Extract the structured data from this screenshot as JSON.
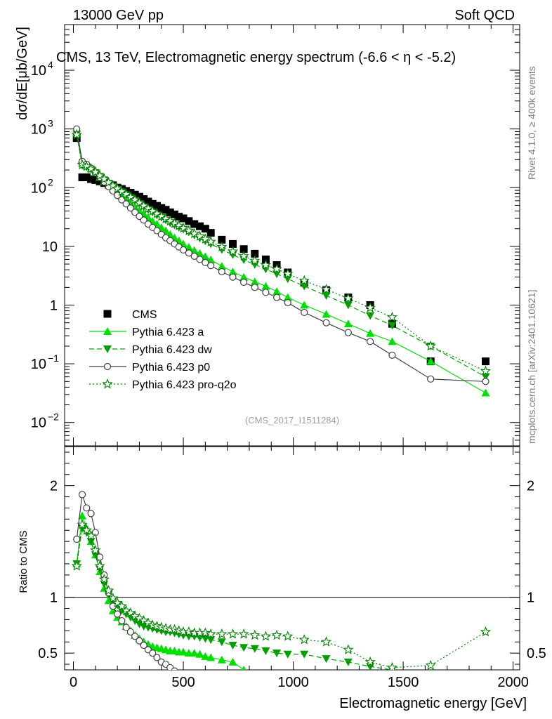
{
  "header": {
    "left": "13000 GeV pp",
    "right": "Soft QCD"
  },
  "side": {
    "rivet": "Rivet 4.1.0, ≥ 400k events",
    "mcplots": "mcplots.cern.ch [arXiv:2401.10621]"
  },
  "chart_data": [
    {
      "type": "scatter",
      "panel": "main",
      "title": "CMS, 13 TeV, Electromagnetic energy spectrum (-6.6 < η < -5.2)",
      "ylabel": "dσ/dE[μb/GeV]",
      "yscale": "log",
      "ylim": [
        0.004,
        60000
      ],
      "xlim": [
        -40,
        2030
      ],
      "watermark": "(CMS_2017_I1511284)",
      "yticks": [
        {
          "value": 0.01,
          "base": "10",
          "exp": "−2"
        },
        {
          "value": 0.1,
          "base": "10",
          "exp": "−1"
        },
        {
          "value": 1,
          "base": "1",
          "exp": ""
        },
        {
          "value": 10,
          "base": "10",
          "exp": ""
        },
        {
          "value": 100,
          "base": "10",
          "exp": "2"
        },
        {
          "value": 1000,
          "base": "10",
          "exp": "3"
        },
        {
          "value": 10000,
          "base": "10",
          "exp": "4"
        }
      ],
      "series": [
        {
          "name": "CMS",
          "color": "#000000",
          "marker": "square",
          "line": "none",
          "x": [
            15,
            40,
            60,
            80,
            100,
            120,
            140,
            160,
            180,
            200,
            220,
            240,
            260,
            280,
            300,
            320,
            340,
            360,
            380,
            400,
            420,
            440,
            460,
            480,
            500,
            525,
            550,
            575,
            600,
            625,
            675,
            725,
            775,
            825,
            875,
            925,
            975,
            1050,
            1150,
            1250,
            1350,
            1450,
            1625,
            1875
          ],
          "y": [
            700,
            150,
            150,
            140,
            135,
            128,
            120,
            115,
            110,
            100,
            95,
            88,
            82,
            76,
            70,
            64,
            58,
            53,
            49,
            45,
            42,
            38,
            35,
            32,
            30,
            27,
            24,
            22,
            20,
            17,
            13,
            11,
            9,
            7.5,
            6,
            4.8,
            3.6,
            2.4,
            1.8,
            1.35,
            1.0,
            0.48,
            0.11,
            0.11
          ]
        },
        {
          "name": "Pythia 6.423 a",
          "color": "#00e000",
          "marker": "triangle-up",
          "line": "solid",
          "x": [
            15,
            40,
            60,
            80,
            100,
            120,
            140,
            160,
            180,
            200,
            220,
            240,
            260,
            280,
            300,
            320,
            340,
            360,
            380,
            400,
            420,
            440,
            460,
            480,
            500,
            525,
            550,
            575,
            600,
            625,
            675,
            725,
            775,
            825,
            875,
            925,
            975,
            1050,
            1150,
            1250,
            1350,
            1450,
            1625,
            1875
          ],
          "y": [
            850,
            260,
            235,
            210,
            180,
            150,
            128,
            110,
            95,
            82,
            72,
            63,
            55,
            47,
            41,
            36,
            31,
            27,
            24,
            21,
            18.5,
            16,
            14,
            12.5,
            11,
            9.7,
            8.5,
            7.6,
            6.7,
            5.9,
            4.6,
            3.7,
            3.0,
            2.5,
            2.1,
            1.7,
            1.35,
            1.0,
            0.7,
            0.48,
            0.33,
            0.24,
            0.11,
            0.032
          ]
        },
        {
          "name": "Pythia 6.423 dw",
          "color": "#00a000",
          "marker": "triangle-down",
          "line": "dashed",
          "x": [
            15,
            40,
            60,
            80,
            100,
            120,
            140,
            160,
            180,
            200,
            220,
            240,
            260,
            280,
            300,
            320,
            340,
            360,
            380,
            400,
            420,
            440,
            460,
            480,
            500,
            525,
            550,
            575,
            600,
            625,
            675,
            725,
            775,
            825,
            875,
            925,
            975,
            1050,
            1150,
            1250,
            1350,
            1450,
            1625,
            1875
          ],
          "y": [
            820,
            240,
            225,
            205,
            180,
            155,
            135,
            118,
            104,
            93,
            84,
            75,
            67,
            60,
            53,
            47,
            42,
            38,
            34,
            31,
            28,
            25,
            23,
            21,
            19.5,
            17.5,
            15.5,
            13.8,
            12.3,
            11.0,
            8.8,
            7.2,
            5.9,
            4.9,
            4.1,
            3.4,
            2.8,
            2.1,
            1.45,
            1.0,
            0.66,
            0.45,
            0.2,
            0.06
          ]
        },
        {
          "name": "Pythia 6.423 p0",
          "color": "#404040",
          "marker": "circle-open",
          "line": "solid",
          "x": [
            15,
            40,
            60,
            80,
            100,
            120,
            140,
            160,
            180,
            200,
            220,
            240,
            260,
            280,
            300,
            320,
            340,
            360,
            380,
            400,
            420,
            440,
            460,
            480,
            500,
            525,
            550,
            575,
            600,
            625,
            675,
            725,
            775,
            825,
            875,
            925,
            975,
            1050,
            1150,
            1250,
            1350,
            1450,
            1625,
            1875
          ],
          "y": [
            1000,
            280,
            250,
            215,
            180,
            150,
            125,
            104,
            88,
            74,
            62,
            53,
            45,
            38,
            32.5,
            28,
            24,
            21,
            18.5,
            16,
            14,
            12.5,
            11,
            9.8,
            8.7,
            7.7,
            6.8,
            6.0,
            5.3,
            4.7,
            3.7,
            3.0,
            2.45,
            2.0,
            1.65,
            1.35,
            1.1,
            0.75,
            0.5,
            0.34,
            0.24,
            0.14,
            0.055,
            0.05
          ]
        },
        {
          "name": "Pythia 6.423 pro-q2o",
          "color": "#008000",
          "marker": "star-open",
          "line": "dotted",
          "x": [
            15,
            40,
            60,
            80,
            100,
            120,
            140,
            160,
            180,
            200,
            220,
            240,
            260,
            280,
            300,
            320,
            340,
            360,
            380,
            400,
            420,
            440,
            460,
            480,
            500,
            525,
            550,
            575,
            600,
            625,
            675,
            725,
            775,
            825,
            875,
            925,
            975,
            1050,
            1150,
            1250,
            1350,
            1450,
            1625,
            1875
          ],
          "y": [
            800,
            245,
            230,
            210,
            185,
            160,
            140,
            122,
            108,
            96,
            86,
            77,
            69,
            62,
            55,
            49,
            44,
            40,
            36,
            32.5,
            29.5,
            27,
            24.5,
            22.5,
            20.5,
            18.5,
            16.5,
            14.8,
            13.3,
            12.0,
            9.8,
            8.2,
            6.8,
            5.7,
            4.8,
            4.1,
            3.4,
            2.6,
            1.85,
            1.3,
            0.9,
            0.62,
            0.2,
            0.075
          ]
        }
      ]
    },
    {
      "type": "line",
      "panel": "ratio",
      "ylabel": "Ratio to CMS",
      "xlabel": "Electromagnetic energy [GeV]",
      "ylim": [
        0.35,
        2.35
      ],
      "xlim": [
        -40,
        2030
      ],
      "reference_line": 1,
      "xticks": [
        0,
        500,
        1000,
        1500,
        2000
      ],
      "yticks": [
        0.5,
        1,
        2
      ],
      "series": [
        {
          "name": "Pythia 6.423 a",
          "color": "#00e000",
          "marker": "triangle-up",
          "line": "solid",
          "x": [
            15,
            40,
            60,
            80,
            100,
            120,
            140,
            160,
            180,
            200,
            220,
            240,
            260,
            280,
            300,
            320,
            340,
            360,
            380,
            400,
            420,
            440,
            460,
            480,
            500,
            525,
            550,
            575,
            600,
            625,
            675,
            725,
            775
          ],
          "y": [
            1.3,
            1.73,
            1.62,
            1.5,
            1.38,
            1.23,
            1.08,
            0.97,
            0.88,
            0.82,
            0.78,
            0.74,
            0.7,
            0.66,
            0.63,
            0.6,
            0.58,
            0.56,
            0.55,
            0.54,
            0.53,
            0.52,
            0.52,
            0.51,
            0.51,
            0.5,
            0.5,
            0.49,
            0.47,
            0.46,
            0.44,
            0.42,
            0.35
          ]
        },
        {
          "name": "Pythia 6.423 dw",
          "color": "#00a000",
          "marker": "triangle-down",
          "line": "dashed",
          "x": [
            15,
            40,
            60,
            80,
            100,
            120,
            140,
            160,
            180,
            200,
            220,
            240,
            260,
            280,
            300,
            320,
            340,
            360,
            380,
            400,
            420,
            440,
            460,
            480,
            500,
            525,
            550,
            575,
            600,
            625,
            675,
            725,
            775,
            825,
            875,
            925,
            975,
            1050,
            1150,
            1250,
            1350,
            1450
          ],
          "y": [
            1.3,
            1.62,
            1.58,
            1.5,
            1.38,
            1.25,
            1.12,
            1.03,
            0.97,
            0.93,
            0.88,
            0.85,
            0.82,
            0.79,
            0.76,
            0.74,
            0.73,
            0.72,
            0.71,
            0.7,
            0.69,
            0.69,
            0.68,
            0.67,
            0.66,
            0.65,
            0.65,
            0.64,
            0.63,
            0.62,
            0.6,
            0.57,
            0.55,
            0.54,
            0.52,
            0.5,
            0.49,
            0.49,
            0.45,
            0.42,
            0.38,
            0.35
          ]
        },
        {
          "name": "Pythia 6.423 p0",
          "color": "#404040",
          "marker": "circle-open",
          "line": "solid",
          "x": [
            15,
            40,
            60,
            80,
            100,
            120,
            140,
            160,
            180,
            200,
            220,
            240,
            260,
            280,
            300,
            320,
            340,
            360,
            380,
            400,
            420,
            440,
            460
          ],
          "y": [
            1.52,
            1.92,
            1.8,
            1.75,
            1.58,
            1.36,
            1.2,
            1.04,
            0.92,
            0.85,
            0.79,
            0.73,
            0.69,
            0.65,
            0.61,
            0.57,
            0.53,
            0.5,
            0.46,
            0.42,
            0.4,
            0.37,
            0.34
          ]
        },
        {
          "name": "Pythia 6.423 pro-q2o",
          "color": "#008000",
          "marker": "star-open",
          "line": "dotted",
          "x": [
            15,
            40,
            60,
            80,
            100,
            120,
            140,
            160,
            180,
            200,
            220,
            240,
            260,
            280,
            300,
            320,
            340,
            360,
            380,
            400,
            420,
            440,
            460,
            480,
            500,
            525,
            550,
            575,
            600,
            625,
            675,
            725,
            775,
            825,
            875,
            925,
            975,
            1050,
            1150,
            1250,
            1350,
            1450,
            1625,
            1875
          ],
          "y": [
            1.28,
            1.65,
            1.6,
            1.55,
            1.42,
            1.28,
            1.16,
            1.06,
            0.99,
            0.95,
            0.92,
            0.88,
            0.86,
            0.83,
            0.81,
            0.79,
            0.77,
            0.75,
            0.74,
            0.73,
            0.72,
            0.71,
            0.71,
            0.7,
            0.69,
            0.69,
            0.68,
            0.68,
            0.68,
            0.67,
            0.67,
            0.67,
            0.67,
            0.66,
            0.65,
            0.66,
            0.65,
            0.62,
            0.6,
            0.53,
            0.42,
            0.37,
            0.39,
            0.69
          ]
        }
      ]
    }
  ]
}
